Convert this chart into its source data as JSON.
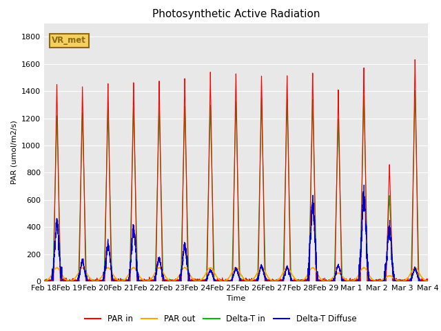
{
  "title": "Photosynthetic Active Radiation",
  "ylabel": "PAR (umol/m2/s)",
  "xlabel": "Time",
  "ylim": [
    0,
    1900
  ],
  "yticks": [
    0,
    200,
    400,
    600,
    800,
    1000,
    1200,
    1400,
    1600,
    1800
  ],
  "background_color": "#e8e8e8",
  "fig_background": "#ffffff",
  "label_box_text": "VR_met",
  "label_box_bg": "#f5d060",
  "label_box_edge": "#8b6914",
  "legend": [
    "PAR in",
    "PAR out",
    "Delta-T in",
    "Delta-T Diffuse"
  ],
  "colors": [
    "#ff0000",
    "#ffa500",
    "#00bb00",
    "#0000cc"
  ],
  "xtick_labels": [
    "Feb 18",
    "Feb 19",
    "Feb 20",
    "Feb 21",
    "Feb 22",
    "Feb 23",
    "Feb 24",
    "Feb 25",
    "Feb 26",
    "Feb 27",
    "Feb 28",
    "Feb 29",
    "Mar 1",
    "Mar 2",
    "Mar 3",
    "Mar 4"
  ],
  "day_peaks_PAR_in": [
    1460,
    1450,
    1470,
    1475,
    1490,
    1510,
    1545,
    1540,
    1535,
    1540,
    1550,
    1430,
    1595,
    870,
    1640,
    0
  ],
  "day_peaks_PAR_out": [
    100,
    100,
    100,
    100,
    100,
    100,
    100,
    100,
    100,
    100,
    100,
    60,
    100,
    40,
    100,
    0
  ],
  "day_peaks_green": [
    1230,
    1255,
    1285,
    1300,
    1300,
    1295,
    1310,
    1335,
    1350,
    1350,
    1355,
    1200,
    1375,
    640,
    1410,
    0
  ],
  "day_peaks_blue": [
    430,
    145,
    265,
    375,
    170,
    255,
    80,
    90,
    110,
    100,
    575,
    115,
    610,
    395,
    90,
    0
  ],
  "points_per_day": 288,
  "n_days": 15
}
